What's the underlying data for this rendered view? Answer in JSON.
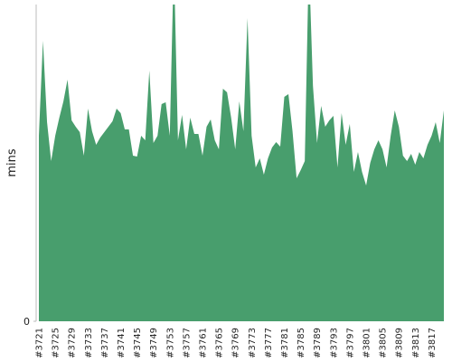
{
  "chart_data": {
    "type": "area",
    "y_label": "mins",
    "color": "#489e6d",
    "categories": [
      "#3721",
      null,
      null,
      null,
      "#3725",
      null,
      null,
      null,
      "#3729",
      null,
      null,
      null,
      "#3733",
      null,
      null,
      null,
      "#3737",
      null,
      null,
      null,
      "#3741",
      null,
      null,
      null,
      "#3745",
      null,
      null,
      null,
      "#3749",
      null,
      null,
      null,
      "#3753",
      null,
      null,
      null,
      "#3757",
      null,
      null,
      null,
      "#3761",
      null,
      null,
      null,
      "#3765",
      null,
      null,
      null,
      "#3769",
      null,
      null,
      null,
      "#3773",
      null,
      null,
      null,
      "#3777",
      null,
      null,
      null,
      "#3781",
      null,
      null,
      null,
      "#3785",
      null,
      null,
      null,
      "#3789",
      null,
      null,
      null,
      "#3793",
      null,
      null,
      null,
      "#3797",
      null,
      null,
      null,
      "#3801",
      null,
      null,
      null,
      "#3805",
      null,
      null,
      null,
      "#3809",
      null,
      null,
      null,
      "#3813",
      null,
      null,
      null,
      "#3817",
      null,
      null,
      null
    ],
    "values": [
      20.5,
      31,
      22,
      17.7,
      20.5,
      22.5,
      24.3,
      26.7,
      22.2,
      21.5,
      20.9,
      18.3,
      23.5,
      21,
      19.5,
      20.3,
      20.9,
      21.5,
      22.1,
      23.5,
      23,
      21.2,
      21.2,
      18.3,
      18.2,
      20.5,
      20,
      27.7,
      19.7,
      20.5,
      24,
      24.2,
      20.5,
      40,
      20,
      22.8,
      19,
      22.5,
      20.7,
      20.7,
      18.3,
      21.5,
      22.3,
      20,
      19,
      25.7,
      25.3,
      22.5,
      19,
      24.3,
      21,
      33.5,
      20.5,
      17,
      18,
      16.2,
      18,
      19.2,
      19.8,
      19.3,
      24.8,
      25.1,
      21,
      15.8,
      16.7,
      17.7,
      40,
      26,
      19.7,
      23.8,
      21.5,
      22.2,
      22.7,
      17,
      23,
      19.5,
      21.8,
      16.5,
      18.7,
      16.5,
      15,
      17.5,
      19,
      20,
      19,
      17,
      20.5,
      23.3,
      21.5,
      18.3,
      17.7,
      18.5,
      17.3,
      18.7,
      18,
      19.5,
      20.5,
      22,
      19.7,
      23.3
    ],
    "ylim": [
      0,
      35
    ],
    "yticks": [
      0
    ]
  }
}
